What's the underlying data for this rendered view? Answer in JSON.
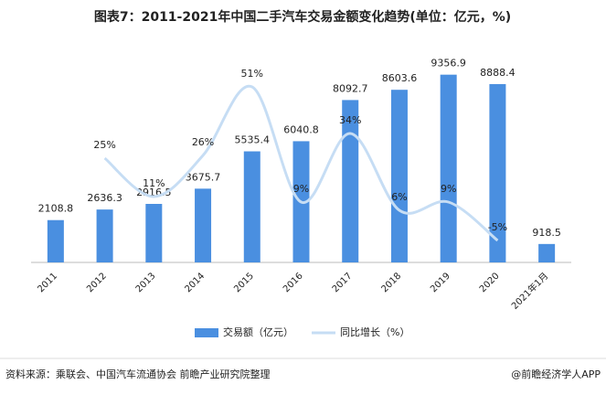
{
  "chart_data": {
    "type": "bar",
    "title": "图表7：2011-2021年中国二手汽车交易金额变化趋势(单位：亿元，%)",
    "categories": [
      "2011",
      "2012",
      "2013",
      "2014",
      "2015",
      "2016",
      "2017",
      "2018",
      "2019",
      "2020",
      "2021年1月"
    ],
    "series": [
      {
        "name": "交易额（亿元）",
        "type": "bar",
        "color": "#4a8fe0",
        "values": [
          2108.8,
          2636.3,
          2916.5,
          3675.7,
          5535.4,
          6040.8,
          8092.7,
          8603.6,
          9356.9,
          8888.4,
          918.5
        ]
      },
      {
        "name": "同比增长（%）",
        "type": "line",
        "axis": "y2",
        "color": "#c6ddf4",
        "values": [
          null,
          25,
          11,
          26,
          51,
          9,
          34,
          6,
          9,
          -5,
          null
        ],
        "value_labels": [
          null,
          "25%",
          "11%",
          "26%",
          "51%",
          "9%",
          "34%",
          "6%",
          "9%",
          "-5%",
          null
        ]
      }
    ],
    "ylim": [
      0,
      10800
    ],
    "y2lim": [
      -13,
      66
    ],
    "legend": "bottom"
  },
  "source": "资料来源：乘联会、中国汽车流通协会 前瞻产业研究院整理",
  "credit": "@前瞻经济学人APP"
}
